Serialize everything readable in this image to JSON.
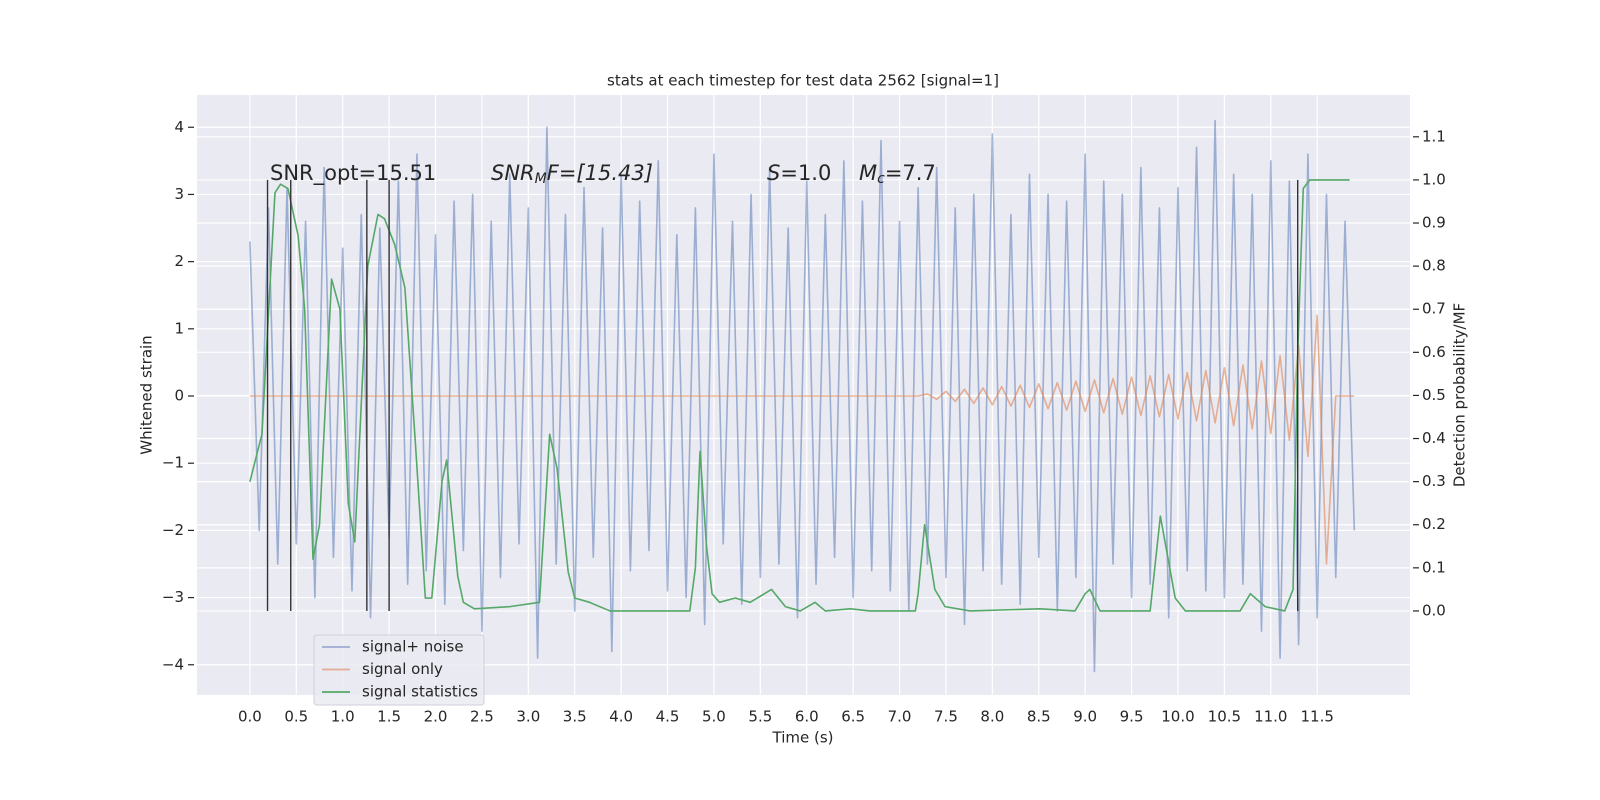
{
  "chart_data": {
    "type": "line",
    "title": "stats at each timestep for test data 2562 [signal=1]",
    "xlabel": "Time (s)",
    "ylabel": "Whitened strain",
    "y2label": "Detection probability/MF",
    "xlim": [
      -0.57,
      12.5
    ],
    "ylim": [
      -4.45,
      4.48
    ],
    "y2lim": [
      -0.195,
      1.197
    ],
    "grid": true,
    "legend": "lower left",
    "xticks": [
      {
        "value": 0,
        "label": "0.0"
      },
      0.5,
      {
        "value": 1,
        "label": "1.0"
      },
      1.5,
      {
        "value": 2,
        "label": "2.0"
      },
      2.5,
      {
        "value": 3,
        "label": "3.0"
      },
      3.5,
      {
        "value": 4,
        "label": "4.0"
      },
      4.5,
      {
        "value": 5,
        "label": "5.0"
      },
      5.5,
      {
        "value": 6,
        "label": "6.0"
      },
      6.5,
      {
        "value": 7,
        "label": "7.0"
      },
      7.5,
      {
        "value": 8,
        "label": "8.0"
      },
      8.5,
      {
        "value": 9,
        "label": "9.0"
      },
      9.5,
      {
        "value": 10,
        "label": "10.0"
      },
      10.5,
      {
        "value": 11,
        "label": "11.0"
      },
      11.5
    ],
    "yticks": [
      {
        "value": -4,
        "label": "−4"
      },
      {
        "value": -3,
        "label": "−3"
      },
      {
        "value": -2,
        "label": "−2"
      },
      {
        "value": -1,
        "label": "−1"
      },
      0,
      1,
      2,
      3,
      4
    ],
    "y2ticks": [
      {
        "value": 0,
        "label": "0.0"
      },
      0.1,
      0.2,
      0.3,
      0.4,
      0.5,
      0.6,
      0.7,
      0.8,
      0.9,
      {
        "value": 1,
        "label": "1.0"
      },
      1.1
    ],
    "annotations": [
      {
        "text": "SNR_opt=15.51"
      },
      {
        "main": "SNR",
        "sub": "M",
        "rest": "F=[15.43]"
      },
      {
        "main": "S",
        "rest": "=1.0"
      },
      {
        "main": "M",
        "sub": "c",
        "rest": "=7.7"
      }
    ],
    "vlines": {
      "color": "#333333",
      "x": [
        0.19,
        0.44,
        1.26,
        1.5,
        11.29
      ],
      "y2": [
        0,
        1
      ]
    },
    "series": [
      {
        "name": "signal+ noise",
        "color": "#4c72b0",
        "x": [
          0,
          0.1,
          0.2,
          0.3,
          0.4,
          0.5,
          0.6,
          0.7,
          0.8,
          0.9,
          1,
          1.1,
          1.2,
          1.3,
          1.4,
          1.5,
          1.6,
          1.7,
          1.8,
          1.9,
          2,
          2.1,
          2.2,
          2.3,
          2.4,
          2.5,
          2.6,
          2.7,
          2.8,
          2.9,
          3,
          3.1,
          3.2,
          3.3,
          3.4,
          3.5,
          3.6,
          3.7,
          3.8,
          3.9,
          4,
          4.1,
          4.2,
          4.3,
          4.4,
          4.5,
          4.6,
          4.7,
          4.8,
          4.9,
          5,
          5.1,
          5.2,
          5.3,
          5.4,
          5.5,
          5.6,
          5.7,
          5.8,
          5.9,
          6,
          6.1,
          6.2,
          6.3,
          6.4,
          6.5,
          6.6,
          6.7,
          6.8,
          6.9,
          7,
          7.1,
          7.2,
          7.3,
          7.4,
          7.5,
          7.6,
          7.7,
          7.8,
          7.9,
          8,
          8.1,
          8.2,
          8.3,
          8.4,
          8.5,
          8.6,
          8.7,
          8.8,
          8.9,
          9,
          9.1,
          9.2,
          9.3,
          9.4,
          9.5,
          9.6,
          9.7,
          9.8,
          9.9,
          10,
          10.1,
          10.2,
          10.3,
          10.4,
          10.5,
          10.6,
          10.7,
          10.8,
          10.9,
          11,
          11.1,
          11.2,
          11.3,
          11.4,
          11.5,
          11.6,
          11.7,
          11.8,
          11.9
        ],
        "values": [
          2.3,
          -2.0,
          2.8,
          -2.5,
          3.1,
          -2.2,
          2.6,
          -3.0,
          3.4,
          -2.4,
          2.2,
          -2.9,
          2.7,
          -3.3,
          2.5,
          -2.1,
          3.2,
          -2.8,
          3.6,
          -2.6,
          2.4,
          -3.1,
          2.9,
          -2.3,
          3.0,
          -3.5,
          2.6,
          -2.7,
          3.3,
          -2.2,
          2.8,
          -3.9,
          4.0,
          -2.5,
          2.7,
          -3.2,
          3.1,
          -2.4,
          2.5,
          -3.8,
          3.3,
          -2.6,
          2.9,
          -2.3,
          3.5,
          -2.9,
          2.4,
          -3.0,
          2.8,
          -3.4,
          3.6,
          -2.2,
          2.6,
          -3.1,
          3.0,
          -2.7,
          3.4,
          -2.5,
          2.5,
          -3.3,
          3.2,
          -2.8,
          2.7,
          -2.4,
          3.5,
          -3.0,
          2.9,
          -2.6,
          3.8,
          -2.9,
          2.6,
          -3.2,
          3.1,
          -2.5,
          3.4,
          -2.7,
          2.8,
          -3.4,
          3.0,
          -2.6,
          3.9,
          -2.8,
          2.7,
          -3.1,
          3.3,
          -2.4,
          3.0,
          -3.2,
          2.9,
          -2.7,
          3.6,
          -4.1,
          3.2,
          -2.5,
          3.0,
          -3.0,
          3.4,
          -2.8,
          2.8,
          -3.3,
          3.1,
          -2.6,
          3.7,
          -2.9,
          4.1,
          -3.0,
          3.3,
          -2.8,
          3.0,
          -3.5,
          3.5,
          -3.9,
          3.2,
          -3.7,
          3.6,
          -3.3,
          3.0,
          -2.7,
          2.6,
          -2.0
        ]
      },
      {
        "name": "signal only",
        "color": "#dd8452",
        "x": [
          0,
          0.1,
          0.2,
          0.3,
          0.4,
          0.5,
          0.6,
          0.7,
          0.8,
          0.9,
          1,
          1.1,
          1.2,
          1.3,
          1.4,
          1.5,
          1.6,
          1.7,
          1.8,
          1.9,
          2,
          2.1,
          2.2,
          2.3,
          2.4,
          2.5,
          2.6,
          2.7,
          2.8,
          2.9,
          3,
          3.1,
          3.2,
          3.3,
          3.4,
          3.5,
          3.6,
          3.7,
          3.8,
          3.9,
          4,
          4.1,
          4.2,
          4.3,
          4.4,
          4.5,
          4.6,
          4.7,
          4.8,
          4.9,
          5,
          5.1,
          5.2,
          5.3,
          5.4,
          5.5,
          5.6,
          5.7,
          5.8,
          5.9,
          6,
          6.1,
          6.2,
          6.3,
          6.4,
          6.5,
          6.6,
          6.7,
          6.8,
          6.9,
          7,
          7.1,
          7.2,
          7.3,
          7.4,
          7.5,
          7.6,
          7.7,
          7.8,
          7.9,
          8,
          8.1,
          8.2,
          8.3,
          8.4,
          8.5,
          8.6,
          8.7,
          8.8,
          8.9,
          9,
          9.1,
          9.2,
          9.3,
          9.4,
          9.5,
          9.6,
          9.7,
          9.8,
          9.9,
          10,
          10.1,
          10.2,
          10.3,
          10.4,
          10.5,
          10.6,
          10.7,
          10.8,
          10.9,
          11,
          11.1,
          11.2,
          11.3,
          11.4,
          11.5,
          11.6,
          11.7,
          11.8,
          11.9
        ],
        "values": [
          0,
          0,
          0,
          0,
          0,
          0,
          0,
          0,
          0,
          0,
          0,
          0,
          0,
          0,
          0,
          0,
          0,
          0,
          0,
          0,
          0,
          0,
          0,
          0,
          0,
          0,
          0,
          0,
          0,
          0,
          0,
          0,
          0,
          0,
          0,
          0,
          0,
          0,
          0,
          0,
          0,
          0,
          0,
          0,
          0,
          0,
          0,
          0,
          0,
          0,
          0,
          0,
          0,
          0,
          0,
          0,
          0,
          0,
          0,
          0,
          0,
          0,
          0,
          0,
          0,
          0,
          0,
          0,
          0,
          0,
          0,
          0,
          0,
          0.03,
          -0.05,
          0.07,
          -0.08,
          0.1,
          -0.11,
          0.12,
          -0.13,
          0.14,
          -0.15,
          0.16,
          -0.17,
          0.18,
          -0.19,
          0.2,
          -0.21,
          0.22,
          -0.23,
          0.24,
          -0.25,
          0.26,
          -0.27,
          0.28,
          -0.29,
          0.3,
          -0.31,
          0.32,
          -0.34,
          0.35,
          -0.37,
          0.38,
          -0.4,
          0.42,
          -0.44,
          0.46,
          -0.49,
          0.52,
          -0.56,
          0.6,
          -0.66,
          0.75,
          -0.9,
          1.2,
          -2.5,
          0,
          0,
          0
        ]
      },
      {
        "name": "signal statistics",
        "color": "#55a868",
        "axis": "y2",
        "x": [
          0,
          0.13,
          0.27,
          0.33,
          0.41,
          0.52,
          0.59,
          0.68,
          0.75,
          0.88,
          0.97,
          1.06,
          1.13,
          1.27,
          1.38,
          1.45,
          1.56,
          1.67,
          1.78,
          1.89,
          1.96,
          2.07,
          2.12,
          2.24,
          2.3,
          2.42,
          2.8,
          3.12,
          3.23,
          3.31,
          3.43,
          3.5,
          3.66,
          3.88,
          4.74,
          4.8,
          4.85,
          4.92,
          4.98,
          5.06,
          5.23,
          5.39,
          5.62,
          5.77,
          5.93,
          6.09,
          6.2,
          6.47,
          6.68,
          7.17,
          7.2,
          7.27,
          7.38,
          7.49,
          7.76,
          8.51,
          8.89,
          9.0,
          9.05,
          9.16,
          9.7,
          9.81,
          9.97,
          10.08,
          10.34,
          10.67,
          10.78,
          10.94,
          11.15,
          11.24,
          11.29,
          11.35,
          11.42,
          11.85
        ],
        "values": [
          0.3,
          0.41,
          0.97,
          0.99,
          0.98,
          0.87,
          0.7,
          0.12,
          0.2,
          0.77,
          0.7,
          0.25,
          0.16,
          0.8,
          0.92,
          0.91,
          0.85,
          0.75,
          0.4,
          0.03,
          0.03,
          0.3,
          0.35,
          0.08,
          0.02,
          0.005,
          0.01,
          0.02,
          0.41,
          0.33,
          0.09,
          0.03,
          0.02,
          0,
          0,
          0.1,
          0.37,
          0.15,
          0.04,
          0.02,
          0.03,
          0.02,
          0.05,
          0.01,
          0,
          0.02,
          0,
          0.005,
          0,
          0,
          0.04,
          0.2,
          0.05,
          0.01,
          0,
          0.005,
          0,
          0.04,
          0.05,
          0,
          0,
          0.22,
          0.03,
          0,
          0,
          0,
          0.04,
          0.01,
          0,
          0.05,
          0.6,
          0.98,
          1,
          1
        ]
      }
    ]
  }
}
